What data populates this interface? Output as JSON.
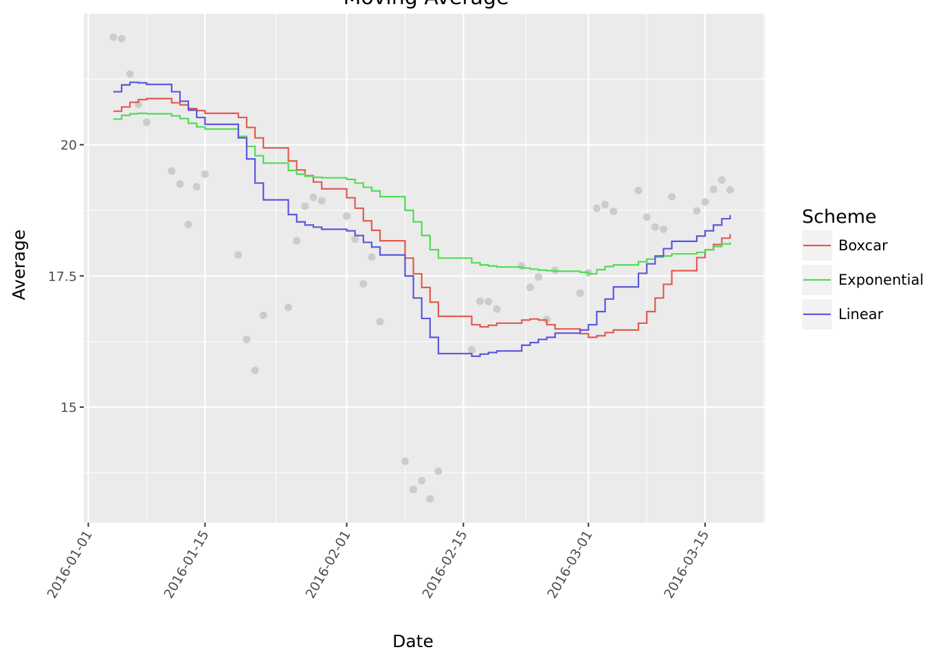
{
  "chart_data": {
    "type": "line",
    "title": "Moving Average",
    "xlabel": "Date",
    "ylabel": "Average",
    "x_scale": "date",
    "xlim": [
      "2016-01-01",
      "2016-03-22"
    ],
    "ylim": [
      12.9,
      22.5
    ],
    "x_ticks": [
      "2016-01-01",
      "2016-01-15",
      "2016-02-01",
      "2016-02-15",
      "2016-03-01",
      "2016-03-15"
    ],
    "y_ticks": [
      15,
      17.5,
      20
    ],
    "y_tick_labels": [
      "15",
      "17.5",
      "20"
    ],
    "grid": true,
    "legend": {
      "title": "Scheme",
      "position": "right"
    },
    "colors": {
      "panel": "#ebebeb",
      "grid": "#ffffff",
      "points": "#cccccc",
      "Boxcar": "#e05a4f",
      "Exponential": "#4fdc53",
      "Linear": "#5a55dd"
    },
    "points": [
      {
        "x": "2016-01-04",
        "y": 22.05
      },
      {
        "x": "2016-01-05",
        "y": 22.02
      },
      {
        "x": "2016-01-06",
        "y": 21.35
      },
      {
        "x": "2016-01-07",
        "y": 20.77
      },
      {
        "x": "2016-01-08",
        "y": 20.43
      },
      {
        "x": "2016-01-11",
        "y": 19.5
      },
      {
        "x": "2016-01-12",
        "y": 19.25
      },
      {
        "x": "2016-01-13",
        "y": 18.48
      },
      {
        "x": "2016-01-14",
        "y": 19.2
      },
      {
        "x": "2016-01-15",
        "y": 19.44
      },
      {
        "x": "2016-01-19",
        "y": 17.9
      },
      {
        "x": "2016-01-20",
        "y": 16.29
      },
      {
        "x": "2016-01-21",
        "y": 15.7
      },
      {
        "x": "2016-01-22",
        "y": 16.75
      },
      {
        "x": "2016-01-25",
        "y": 16.9
      },
      {
        "x": "2016-01-26",
        "y": 18.17
      },
      {
        "x": "2016-01-27",
        "y": 18.83
      },
      {
        "x": "2016-01-28",
        "y": 19.0
      },
      {
        "x": "2016-01-29",
        "y": 18.93
      },
      {
        "x": "2016-02-01",
        "y": 18.64
      },
      {
        "x": "2016-02-02",
        "y": 18.2
      },
      {
        "x": "2016-02-03",
        "y": 17.35
      },
      {
        "x": "2016-02-04",
        "y": 17.86
      },
      {
        "x": "2016-02-05",
        "y": 16.63
      },
      {
        "x": "2016-02-08",
        "y": 13.97
      },
      {
        "x": "2016-02-09",
        "y": 13.43
      },
      {
        "x": "2016-02-10",
        "y": 13.6
      },
      {
        "x": "2016-02-11",
        "y": 13.25
      },
      {
        "x": "2016-02-12",
        "y": 13.78
      },
      {
        "x": "2016-02-16",
        "y": 16.09
      },
      {
        "x": "2016-02-17",
        "y": 17.02
      },
      {
        "x": "2016-02-18",
        "y": 17.01
      },
      {
        "x": "2016-02-19",
        "y": 16.87
      },
      {
        "x": "2016-02-22",
        "y": 17.69
      },
      {
        "x": "2016-02-23",
        "y": 17.28
      },
      {
        "x": "2016-02-24",
        "y": 17.48
      },
      {
        "x": "2016-02-25",
        "y": 16.67
      },
      {
        "x": "2016-02-26",
        "y": 17.61
      },
      {
        "x": "2016-02-29",
        "y": 17.17
      },
      {
        "x": "2016-03-01",
        "y": 17.56
      },
      {
        "x": "2016-03-02",
        "y": 18.79
      },
      {
        "x": "2016-03-03",
        "y": 18.86
      },
      {
        "x": "2016-03-04",
        "y": 18.73
      },
      {
        "x": "2016-03-07",
        "y": 19.13
      },
      {
        "x": "2016-03-08",
        "y": 18.62
      },
      {
        "x": "2016-03-09",
        "y": 18.43
      },
      {
        "x": "2016-03-10",
        "y": 18.39
      },
      {
        "x": "2016-03-11",
        "y": 19.01
      },
      {
        "x": "2016-03-14",
        "y": 18.74
      },
      {
        "x": "2016-03-15",
        "y": 18.91
      },
      {
        "x": "2016-03-16",
        "y": 19.15
      },
      {
        "x": "2016-03-17",
        "y": 19.33
      },
      {
        "x": "2016-03-18",
        "y": 19.14
      }
    ],
    "series": [
      {
        "name": "Boxcar",
        "x": [
          "2016-01-04",
          "2016-01-05",
          "2016-01-06",
          "2016-01-07",
          "2016-01-08",
          "2016-01-11",
          "2016-01-12",
          "2016-01-13",
          "2016-01-14",
          "2016-01-15",
          "2016-01-19",
          "2016-01-20",
          "2016-01-21",
          "2016-01-22",
          "2016-01-25",
          "2016-01-26",
          "2016-01-27",
          "2016-01-28",
          "2016-01-29",
          "2016-02-01",
          "2016-02-02",
          "2016-02-03",
          "2016-02-04",
          "2016-02-05",
          "2016-02-08",
          "2016-02-09",
          "2016-02-10",
          "2016-02-11",
          "2016-02-12",
          "2016-02-16",
          "2016-02-17",
          "2016-02-18",
          "2016-02-19",
          "2016-02-22",
          "2016-02-23",
          "2016-02-24",
          "2016-02-25",
          "2016-02-26",
          "2016-02-29",
          "2016-03-01",
          "2016-03-02",
          "2016-03-03",
          "2016-03-04",
          "2016-03-07",
          "2016-03-08",
          "2016-03-09",
          "2016-03-10",
          "2016-03-11",
          "2016-03-14",
          "2016-03-15",
          "2016-03-16",
          "2016-03-17",
          "2016-03-18"
        ],
        "values": [
          20.64,
          20.72,
          20.81,
          20.86,
          20.88,
          20.8,
          20.76,
          20.69,
          20.65,
          20.6,
          20.52,
          20.33,
          20.13,
          19.94,
          19.69,
          19.52,
          19.41,
          19.29,
          19.16,
          18.99,
          18.79,
          18.55,
          18.37,
          18.17,
          17.84,
          17.54,
          17.28,
          17.0,
          16.73,
          16.57,
          16.53,
          16.56,
          16.6,
          16.66,
          16.68,
          16.66,
          16.57,
          16.49,
          16.4,
          16.33,
          16.36,
          16.42,
          16.47,
          16.6,
          16.82,
          17.08,
          17.34,
          17.6,
          17.85,
          18.0,
          18.1,
          18.22,
          18.3
        ]
      },
      {
        "name": "Exponential",
        "x": [
          "2016-01-04",
          "2016-01-05",
          "2016-01-06",
          "2016-01-07",
          "2016-01-08",
          "2016-01-11",
          "2016-01-12",
          "2016-01-13",
          "2016-01-14",
          "2016-01-15",
          "2016-01-19",
          "2016-01-20",
          "2016-01-21",
          "2016-01-22",
          "2016-01-25",
          "2016-01-26",
          "2016-01-27",
          "2016-01-28",
          "2016-01-29",
          "2016-02-01",
          "2016-02-02",
          "2016-02-03",
          "2016-02-04",
          "2016-02-05",
          "2016-02-08",
          "2016-02-09",
          "2016-02-10",
          "2016-02-11",
          "2016-02-12",
          "2016-02-16",
          "2016-02-17",
          "2016-02-18",
          "2016-02-19",
          "2016-02-22",
          "2016-02-23",
          "2016-02-24",
          "2016-02-25",
          "2016-02-26",
          "2016-02-29",
          "2016-03-01",
          "2016-03-02",
          "2016-03-03",
          "2016-03-04",
          "2016-03-07",
          "2016-03-08",
          "2016-03-09",
          "2016-03-10",
          "2016-03-11",
          "2016-03-14",
          "2016-03-15",
          "2016-03-16",
          "2016-03-17",
          "2016-03-18"
        ],
        "values": [
          20.49,
          20.56,
          20.59,
          20.6,
          20.59,
          20.55,
          20.5,
          20.41,
          20.34,
          20.3,
          20.16,
          19.97,
          19.79,
          19.65,
          19.51,
          19.44,
          19.4,
          19.38,
          19.37,
          19.34,
          19.27,
          19.19,
          19.12,
          19.01,
          18.75,
          18.53,
          18.27,
          18.0,
          17.84,
          17.75,
          17.71,
          17.69,
          17.67,
          17.65,
          17.63,
          17.61,
          17.6,
          17.59,
          17.57,
          17.54,
          17.62,
          17.68,
          17.71,
          17.77,
          17.82,
          17.86,
          17.88,
          17.92,
          17.95,
          18.0,
          18.06,
          18.11,
          18.14
        ]
      },
      {
        "name": "Linear",
        "x": [
          "2016-01-04",
          "2016-01-05",
          "2016-01-06",
          "2016-01-07",
          "2016-01-08",
          "2016-01-11",
          "2016-01-12",
          "2016-01-13",
          "2016-01-14",
          "2016-01-15",
          "2016-01-19",
          "2016-01-20",
          "2016-01-21",
          "2016-01-22",
          "2016-01-25",
          "2016-01-26",
          "2016-01-27",
          "2016-01-28",
          "2016-01-29",
          "2016-02-01",
          "2016-02-02",
          "2016-02-03",
          "2016-02-04",
          "2016-02-05",
          "2016-02-08",
          "2016-02-09",
          "2016-02-10",
          "2016-02-11",
          "2016-02-12",
          "2016-02-16",
          "2016-02-17",
          "2016-02-18",
          "2016-02-19",
          "2016-02-22",
          "2016-02-23",
          "2016-02-24",
          "2016-02-25",
          "2016-02-26",
          "2016-02-29",
          "2016-03-01",
          "2016-03-02",
          "2016-03-03",
          "2016-03-04",
          "2016-03-07",
          "2016-03-08",
          "2016-03-09",
          "2016-03-10",
          "2016-03-11",
          "2016-03-14",
          "2016-03-15",
          "2016-03-16",
          "2016-03-17",
          "2016-03-18"
        ],
        "values": [
          21.01,
          21.14,
          21.19,
          21.18,
          21.15,
          21.01,
          20.83,
          20.66,
          20.52,
          20.39,
          20.13,
          19.73,
          19.27,
          18.95,
          18.67,
          18.53,
          18.47,
          18.43,
          18.39,
          18.36,
          18.27,
          18.14,
          18.05,
          17.9,
          17.5,
          17.08,
          16.69,
          16.33,
          16.02,
          15.97,
          16.01,
          16.04,
          16.07,
          16.18,
          16.23,
          16.29,
          16.33,
          16.41,
          16.47,
          16.57,
          16.82,
          17.06,
          17.29,
          17.55,
          17.73,
          17.88,
          18.02,
          18.16,
          18.26,
          18.36,
          18.47,
          18.59,
          18.66
        ]
      }
    ]
  }
}
